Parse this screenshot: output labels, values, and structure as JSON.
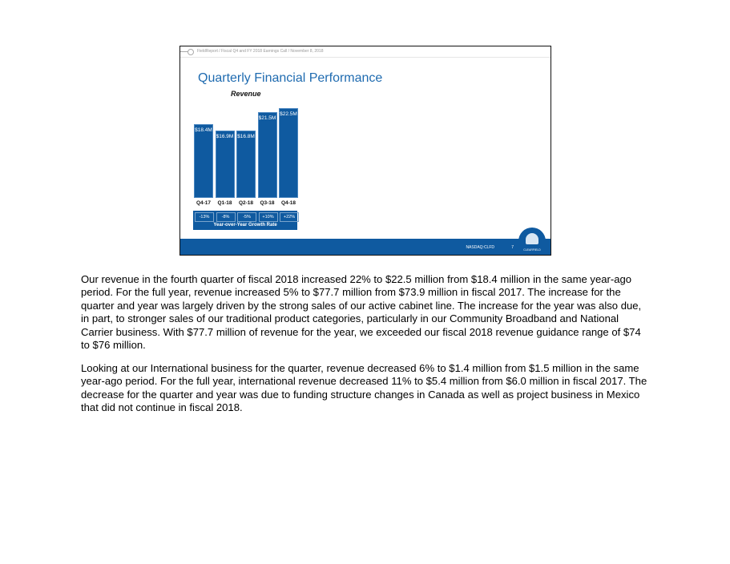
{
  "slide": {
    "breadcrumb": "FieldReport / Fiscal Q4 and FY 2018 Earnings Call / November 8, 2018",
    "title": "Quarterly Financial Performance",
    "ticker": "NASDAQ:CLFD",
    "page_number": "7",
    "logo_text": "CLEARFIELD",
    "growth_title": "Year-over-Year Growth Rate",
    "growth": [
      "-13%",
      "-8%",
      "-5%",
      "+10%",
      "+22%"
    ]
  },
  "chart_data": {
    "type": "bar",
    "title": "Revenue",
    "categories": [
      "Q4-17",
      "Q1-18",
      "Q2-18",
      "Q3-18",
      "Q4-18"
    ],
    "values": [
      18.4,
      16.9,
      16.8,
      21.5,
      22.5
    ],
    "data_labels": [
      "$18.4M",
      "$16.9M",
      "$16.8M",
      "$21.5M",
      "$22.5M"
    ],
    "unit": "$M",
    "color": "#0f5aa0"
  },
  "paragraphs": [
    "Our revenue in the fourth quarter of fiscal 2018 increased 22% to $22.5 million from $18.4 million in the same year-ago period. For the full year, revenue increased 5% to $77.7 million from $73.9 million in fiscal 2017. The increase for the quarter and year was largely driven by the strong sales of our active cabinet line. The increase for the year was also due, in part, to stronger sales of our traditional product categories, particularly in our Community Broadband and National Carrier business. With $77.7 million of revenue for the year, we exceeded our fiscal 2018 revenue guidance range of $74 to $76 million.",
    "Looking at our International business for the quarter, revenue decreased 6% to $1.4 million from $1.5 million in the same year-ago period. For the full year, international revenue decreased 11% to $5.4 million from $6.0 million in fiscal 2017. The decrease for the quarter and year was due to funding structure changes in Canada as well as project business in Mexico that did not continue in fiscal 2018."
  ]
}
